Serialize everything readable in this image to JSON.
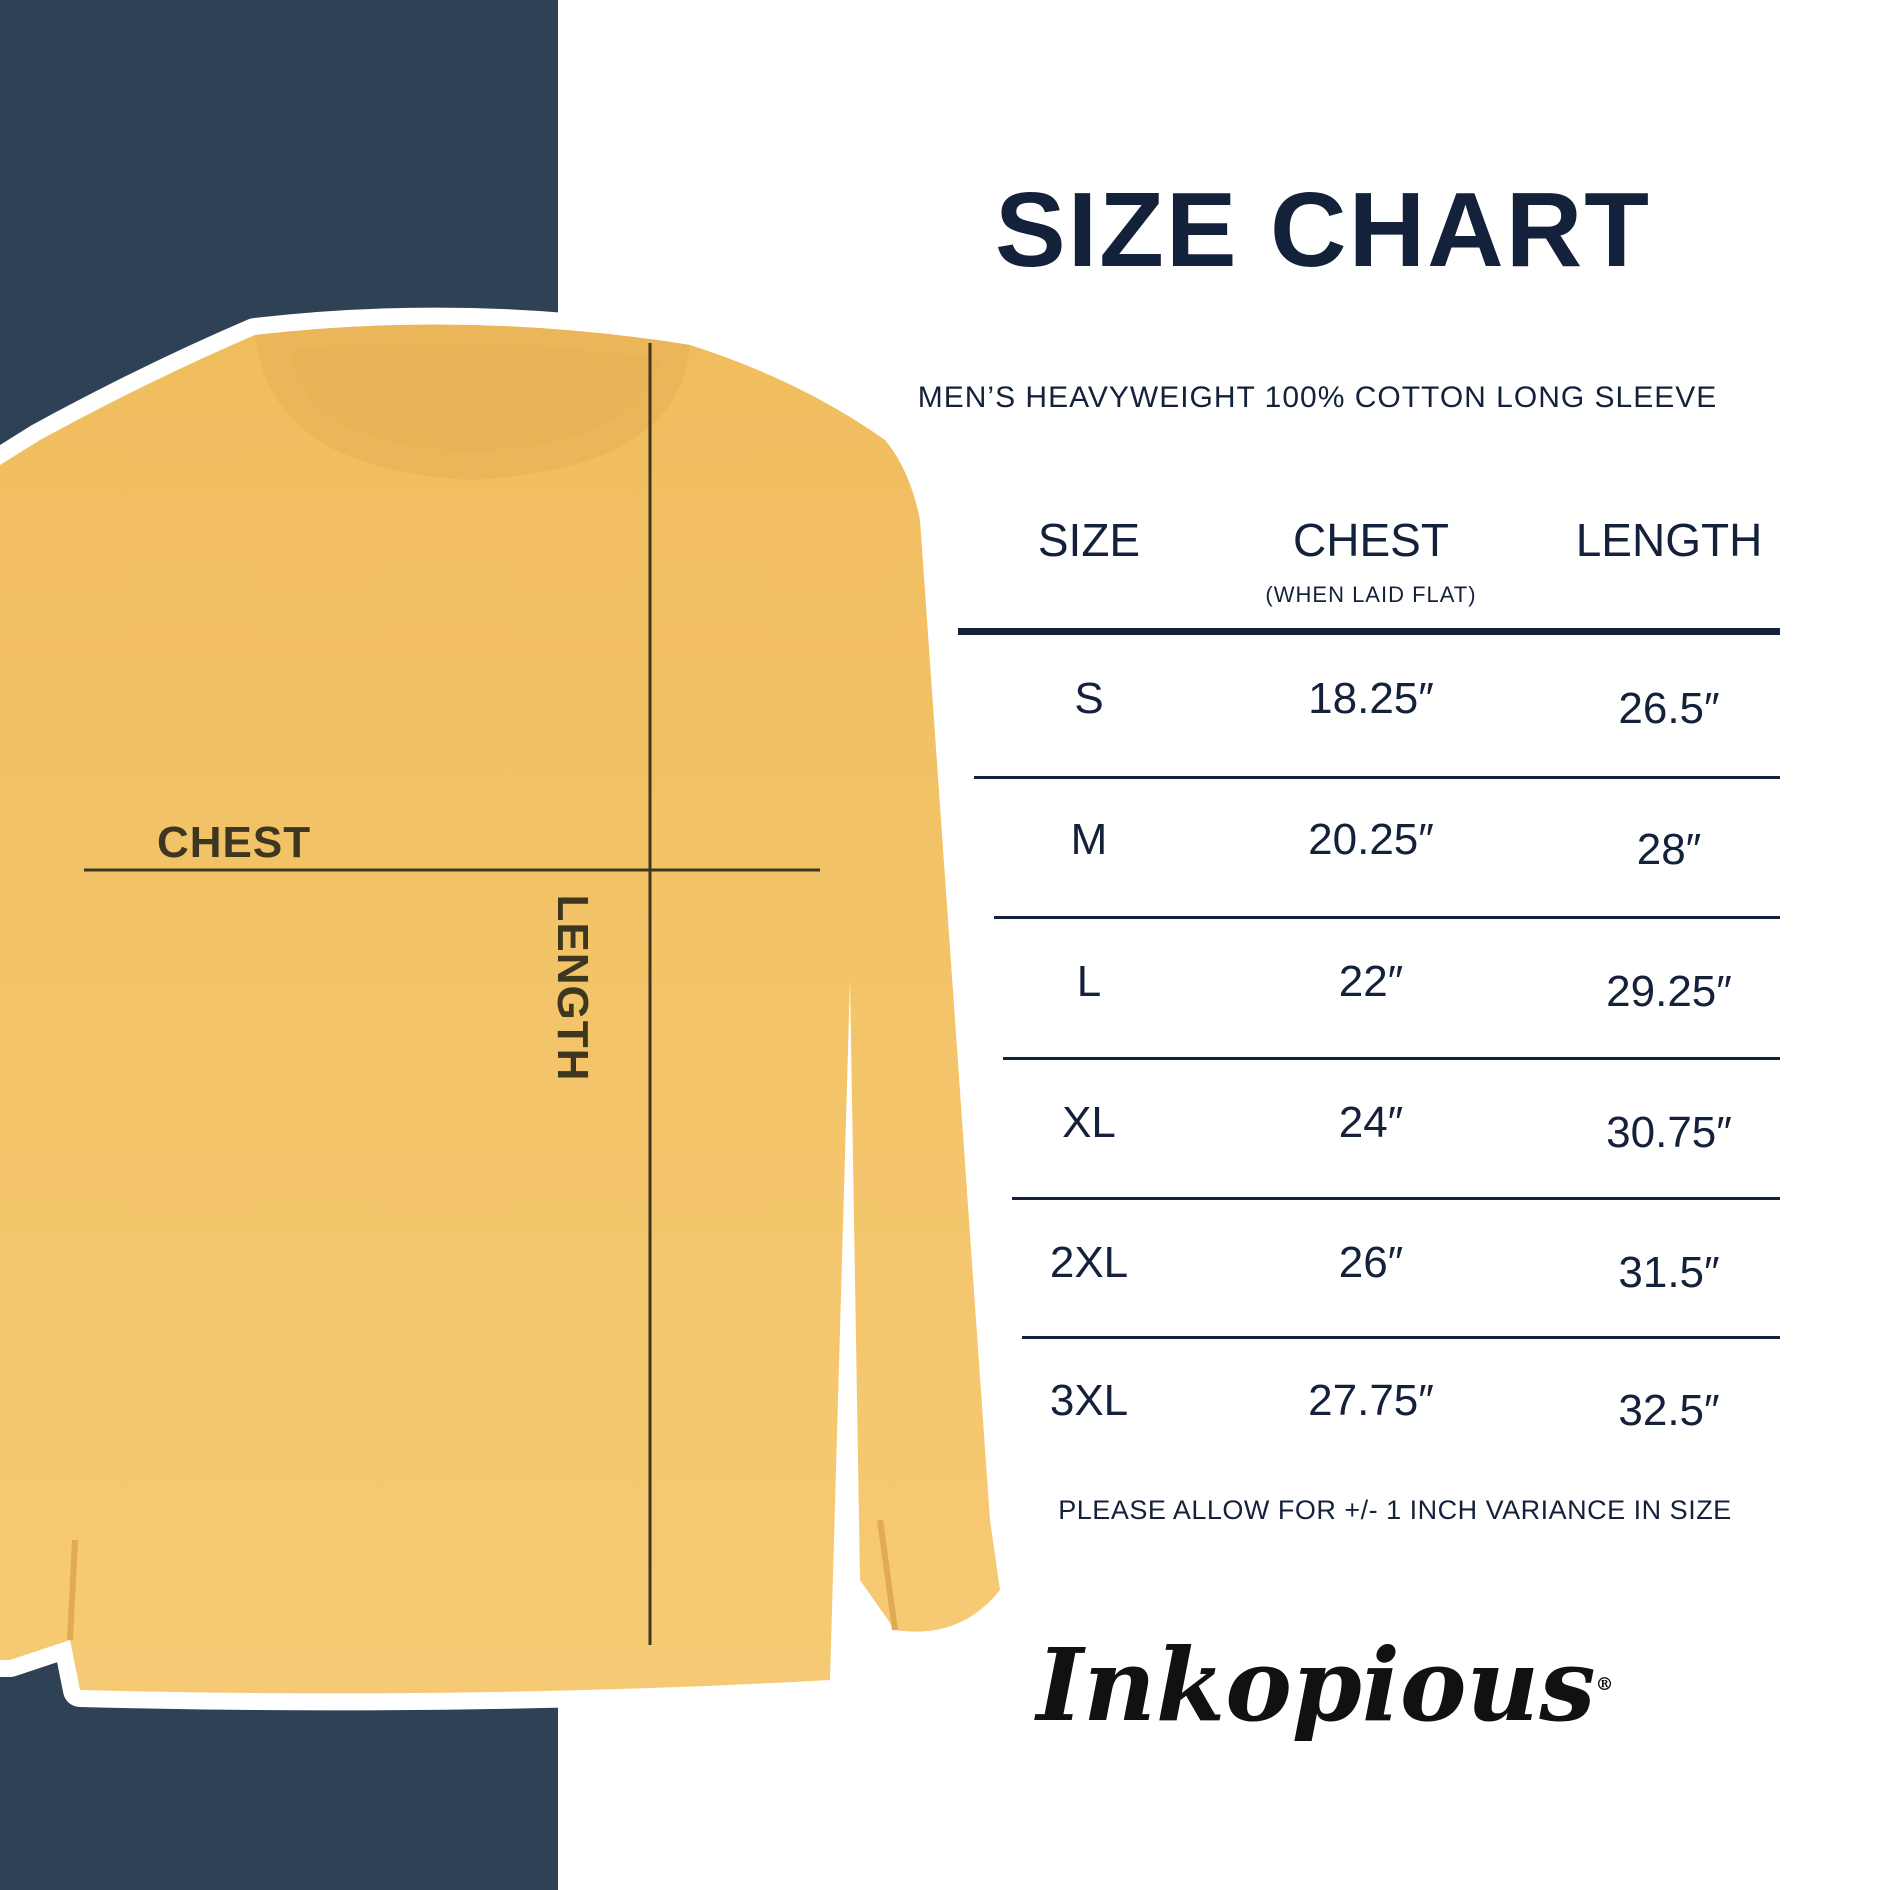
{
  "title": "SIZE CHART",
  "subtitle": "MEN’S HEAVYWEIGHT 100% COTTON LONG SLEEVE",
  "colors": {
    "panel": "#2e4155",
    "ink": "#14213a",
    "shirt": "#f2c165",
    "measure_line": "#3d3620"
  },
  "diagram": {
    "chest_label": "CHEST",
    "length_label": "LENGTH"
  },
  "table": {
    "headers": {
      "size": "SIZE",
      "chest": "CHEST",
      "chest_note": "(WHEN LAID FLAT)",
      "length": "LENGTH"
    },
    "rows": [
      {
        "size": "S",
        "chest": "18.25″",
        "length": "26.5″"
      },
      {
        "size": "M",
        "chest": "20.25″",
        "length": "28″"
      },
      {
        "size": "L",
        "chest": "22″",
        "length": "29.25″"
      },
      {
        "size": "XL",
        "chest": "24″",
        "length": "30.75″"
      },
      {
        "size": "2XL",
        "chest": "26″",
        "length": "31.5″"
      },
      {
        "size": "3XL",
        "chest": "27.75″",
        "length": "32.5″"
      }
    ]
  },
  "note": "PLEASE ALLOW FOR +/- 1 INCH VARIANCE IN SIZE",
  "logo": {
    "text": "Inkopious",
    "mark": "®"
  }
}
